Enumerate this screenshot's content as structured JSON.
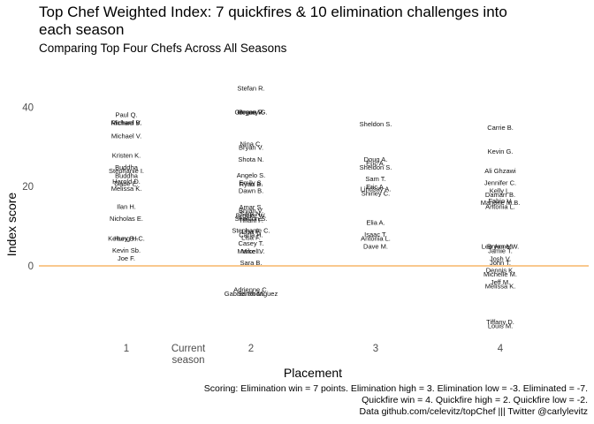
{
  "chart_data": {
    "type": "scatter",
    "title": "Top Chef Weighted Index: 7 quickfires & 10 elimination challenges into each season",
    "subtitle": "Comparing Top Four Chefs Across All Seasons",
    "xlabel": "Placement",
    "ylabel": "Index score",
    "x_categories": [
      "1",
      "Current\nseason",
      "2",
      "3",
      "4"
    ],
    "y_ticks": [
      0,
      20,
      40
    ],
    "ylim": [
      -17,
      48
    ],
    "reference_line": {
      "y": 0,
      "color": "#f5a74b"
    },
    "grid": false,
    "legend": "none",
    "points": [
      {
        "x": "1",
        "y": 38.2,
        "label": "Paul Q."
      },
      {
        "x": "1",
        "y": 36.2,
        "label": "Richard B."
      },
      {
        "x": "1",
        "y": 36.2,
        "label": "Michael V."
      },
      {
        "x": "1",
        "y": 32.8,
        "label": "Michael V."
      },
      {
        "x": "1",
        "y": 28.0,
        "label": "Kristen K."
      },
      {
        "x": "1",
        "y": 25.0,
        "label": "Buddha"
      },
      {
        "x": "1",
        "y": 24.0,
        "label": "Stephanie I."
      },
      {
        "x": "1",
        "y": 22.8,
        "label": "Buddha"
      },
      {
        "x": "1",
        "y": 21.4,
        "label": "Harold D."
      },
      {
        "x": "1",
        "y": 20.8,
        "label": "Gabe E."
      },
      {
        "x": "1",
        "y": 19.6,
        "label": "Melissa K."
      },
      {
        "x": "1",
        "y": 15.0,
        "label": "Ilan H."
      },
      {
        "x": "1",
        "y": 12.0,
        "label": "Nicholas E."
      },
      {
        "x": "1",
        "y": 7.0,
        "label": "Kelsey B.-C."
      },
      {
        "x": "1",
        "y": 7.0,
        "label": "Hung H."
      },
      {
        "x": "1",
        "y": 4.0,
        "label": "Kevin Sb."
      },
      {
        "x": "1",
        "y": 2.0,
        "label": "Joe F."
      },
      {
        "x": "2",
        "y": 44.9,
        "label": "Stefan R."
      },
      {
        "x": "2",
        "y": 38.9,
        "label": "Gregory G."
      },
      {
        "x": "2",
        "y": 38.9,
        "label": "Bryan V."
      },
      {
        "x": "2",
        "y": 38.9,
        "label": "Hosea R."
      },
      {
        "x": "2",
        "y": 30.9,
        "label": "Nina C."
      },
      {
        "x": "2",
        "y": 30.0,
        "label": "Bryan V."
      },
      {
        "x": "2",
        "y": 27.0,
        "label": "Shota N."
      },
      {
        "x": "2",
        "y": 22.9,
        "label": "Angelo S."
      },
      {
        "x": "2",
        "y": 21.0,
        "label": "Emily S."
      },
      {
        "x": "2",
        "y": 20.7,
        "label": "Ryan B."
      },
      {
        "x": "2",
        "y": 19.0,
        "label": "Dawn B."
      },
      {
        "x": "2",
        "y": 14.9,
        "label": "Amar S."
      },
      {
        "x": "2",
        "y": 14.0,
        "label": "Bryan V."
      },
      {
        "x": "2",
        "y": 13.2,
        "label": "Sara N."
      },
      {
        "x": "2",
        "y": 12.8,
        "label": "Brooke W."
      },
      {
        "x": "2",
        "y": 12.0,
        "label": "Sheldon S."
      },
      {
        "x": "2",
        "y": 11.6,
        "label": "Tiffani F."
      },
      {
        "x": "2",
        "y": 9.0,
        "label": "Stephanie C."
      },
      {
        "x": "2",
        "y": 8.8,
        "label": "Lisa F."
      },
      {
        "x": "2",
        "y": 7.9,
        "label": "Carla H."
      },
      {
        "x": "2",
        "y": 7.2,
        "label": "Lisa F."
      },
      {
        "x": "2",
        "y": 5.8,
        "label": "Casey T."
      },
      {
        "x": "2",
        "y": 3.8,
        "label": "Mike I."
      },
      {
        "x": "2",
        "y": 3.8,
        "label": "Marcel V."
      },
      {
        "x": "2",
        "y": 0.9,
        "label": "Sara B."
      },
      {
        "x": "2",
        "y": -5.9,
        "label": "Adrienne C."
      },
      {
        "x": "2",
        "y": -6.9,
        "label": "Gabriel Rodriguez"
      },
      {
        "x": "2",
        "y": -6.9,
        "label": "Sarah M."
      },
      {
        "x": "3",
        "y": 35.9,
        "label": "Sheldon S."
      },
      {
        "x": "3",
        "y": 27.0,
        "label": "Doug A."
      },
      {
        "x": "3",
        "y": 26.0,
        "label": "Eric A."
      },
      {
        "x": "3",
        "y": 25.0,
        "label": "Sheldon S."
      },
      {
        "x": "3",
        "y": 22.0,
        "label": "Sam T."
      },
      {
        "x": "3",
        "y": 20.0,
        "label": "Eric A."
      },
      {
        "x": "3",
        "y": 19.5,
        "label": "Lindsay A."
      },
      {
        "x": "3",
        "y": 18.4,
        "label": "Shirley C."
      },
      {
        "x": "3",
        "y": 11.0,
        "label": "Elia A."
      },
      {
        "x": "3",
        "y": 8.0,
        "label": "Isaac T."
      },
      {
        "x": "3",
        "y": 7.0,
        "label": "Antonia L."
      },
      {
        "x": "3",
        "y": 5.0,
        "label": "Dave M."
      },
      {
        "x": "4",
        "y": 35.0,
        "label": "Carrie B."
      },
      {
        "x": "4",
        "y": 29.0,
        "label": "Kevin G."
      },
      {
        "x": "4",
        "y": 24.0,
        "label": "Ali Ghzawi"
      },
      {
        "x": "4",
        "y": 21.0,
        "label": "Jennifer C."
      },
      {
        "x": "4",
        "y": 19.0,
        "label": "Kelly L."
      },
      {
        "x": "4",
        "y": 18.0,
        "label": "Damarr B."
      },
      {
        "x": "4",
        "y": 16.5,
        "label": "Fabio V."
      },
      {
        "x": "4",
        "y": 16.0,
        "label": "Marjorie M.B."
      },
      {
        "x": "4",
        "y": 15.0,
        "label": "Antonia L."
      },
      {
        "x": "4",
        "y": 5.0,
        "label": "Lee Anne W."
      },
      {
        "x": "4",
        "y": 5.0,
        "label": "Bryan M."
      },
      {
        "x": "4",
        "y": 3.9,
        "label": "Jamie T."
      },
      {
        "x": "4",
        "y": 1.9,
        "label": "Josh V."
      },
      {
        "x": "4",
        "y": 0.9,
        "label": "John T."
      },
      {
        "x": "4",
        "y": -1.0,
        "label": "Dennis K."
      },
      {
        "x": "4",
        "y": -2.0,
        "label": "Michelle M."
      },
      {
        "x": "4",
        "y": -4.0,
        "label": "Jeff M."
      },
      {
        "x": "4",
        "y": -5.0,
        "label": "Melissa K."
      },
      {
        "x": "4",
        "y": -14.0,
        "label": "Tiffany D."
      },
      {
        "x": "4",
        "y": -15.0,
        "label": "Louis M."
      }
    ]
  },
  "caption": {
    "line1": "Scoring: Elimination win = 7 points. Elimination high = 3. Elimination low = -3. Eliminated = -7.",
    "line2": "Quickfire win = 4. Quickfire high = 2. Quickfire low = -2.",
    "line3": "Data github.com/celevitz/topChef ||| Twitter @carlylevitz"
  }
}
